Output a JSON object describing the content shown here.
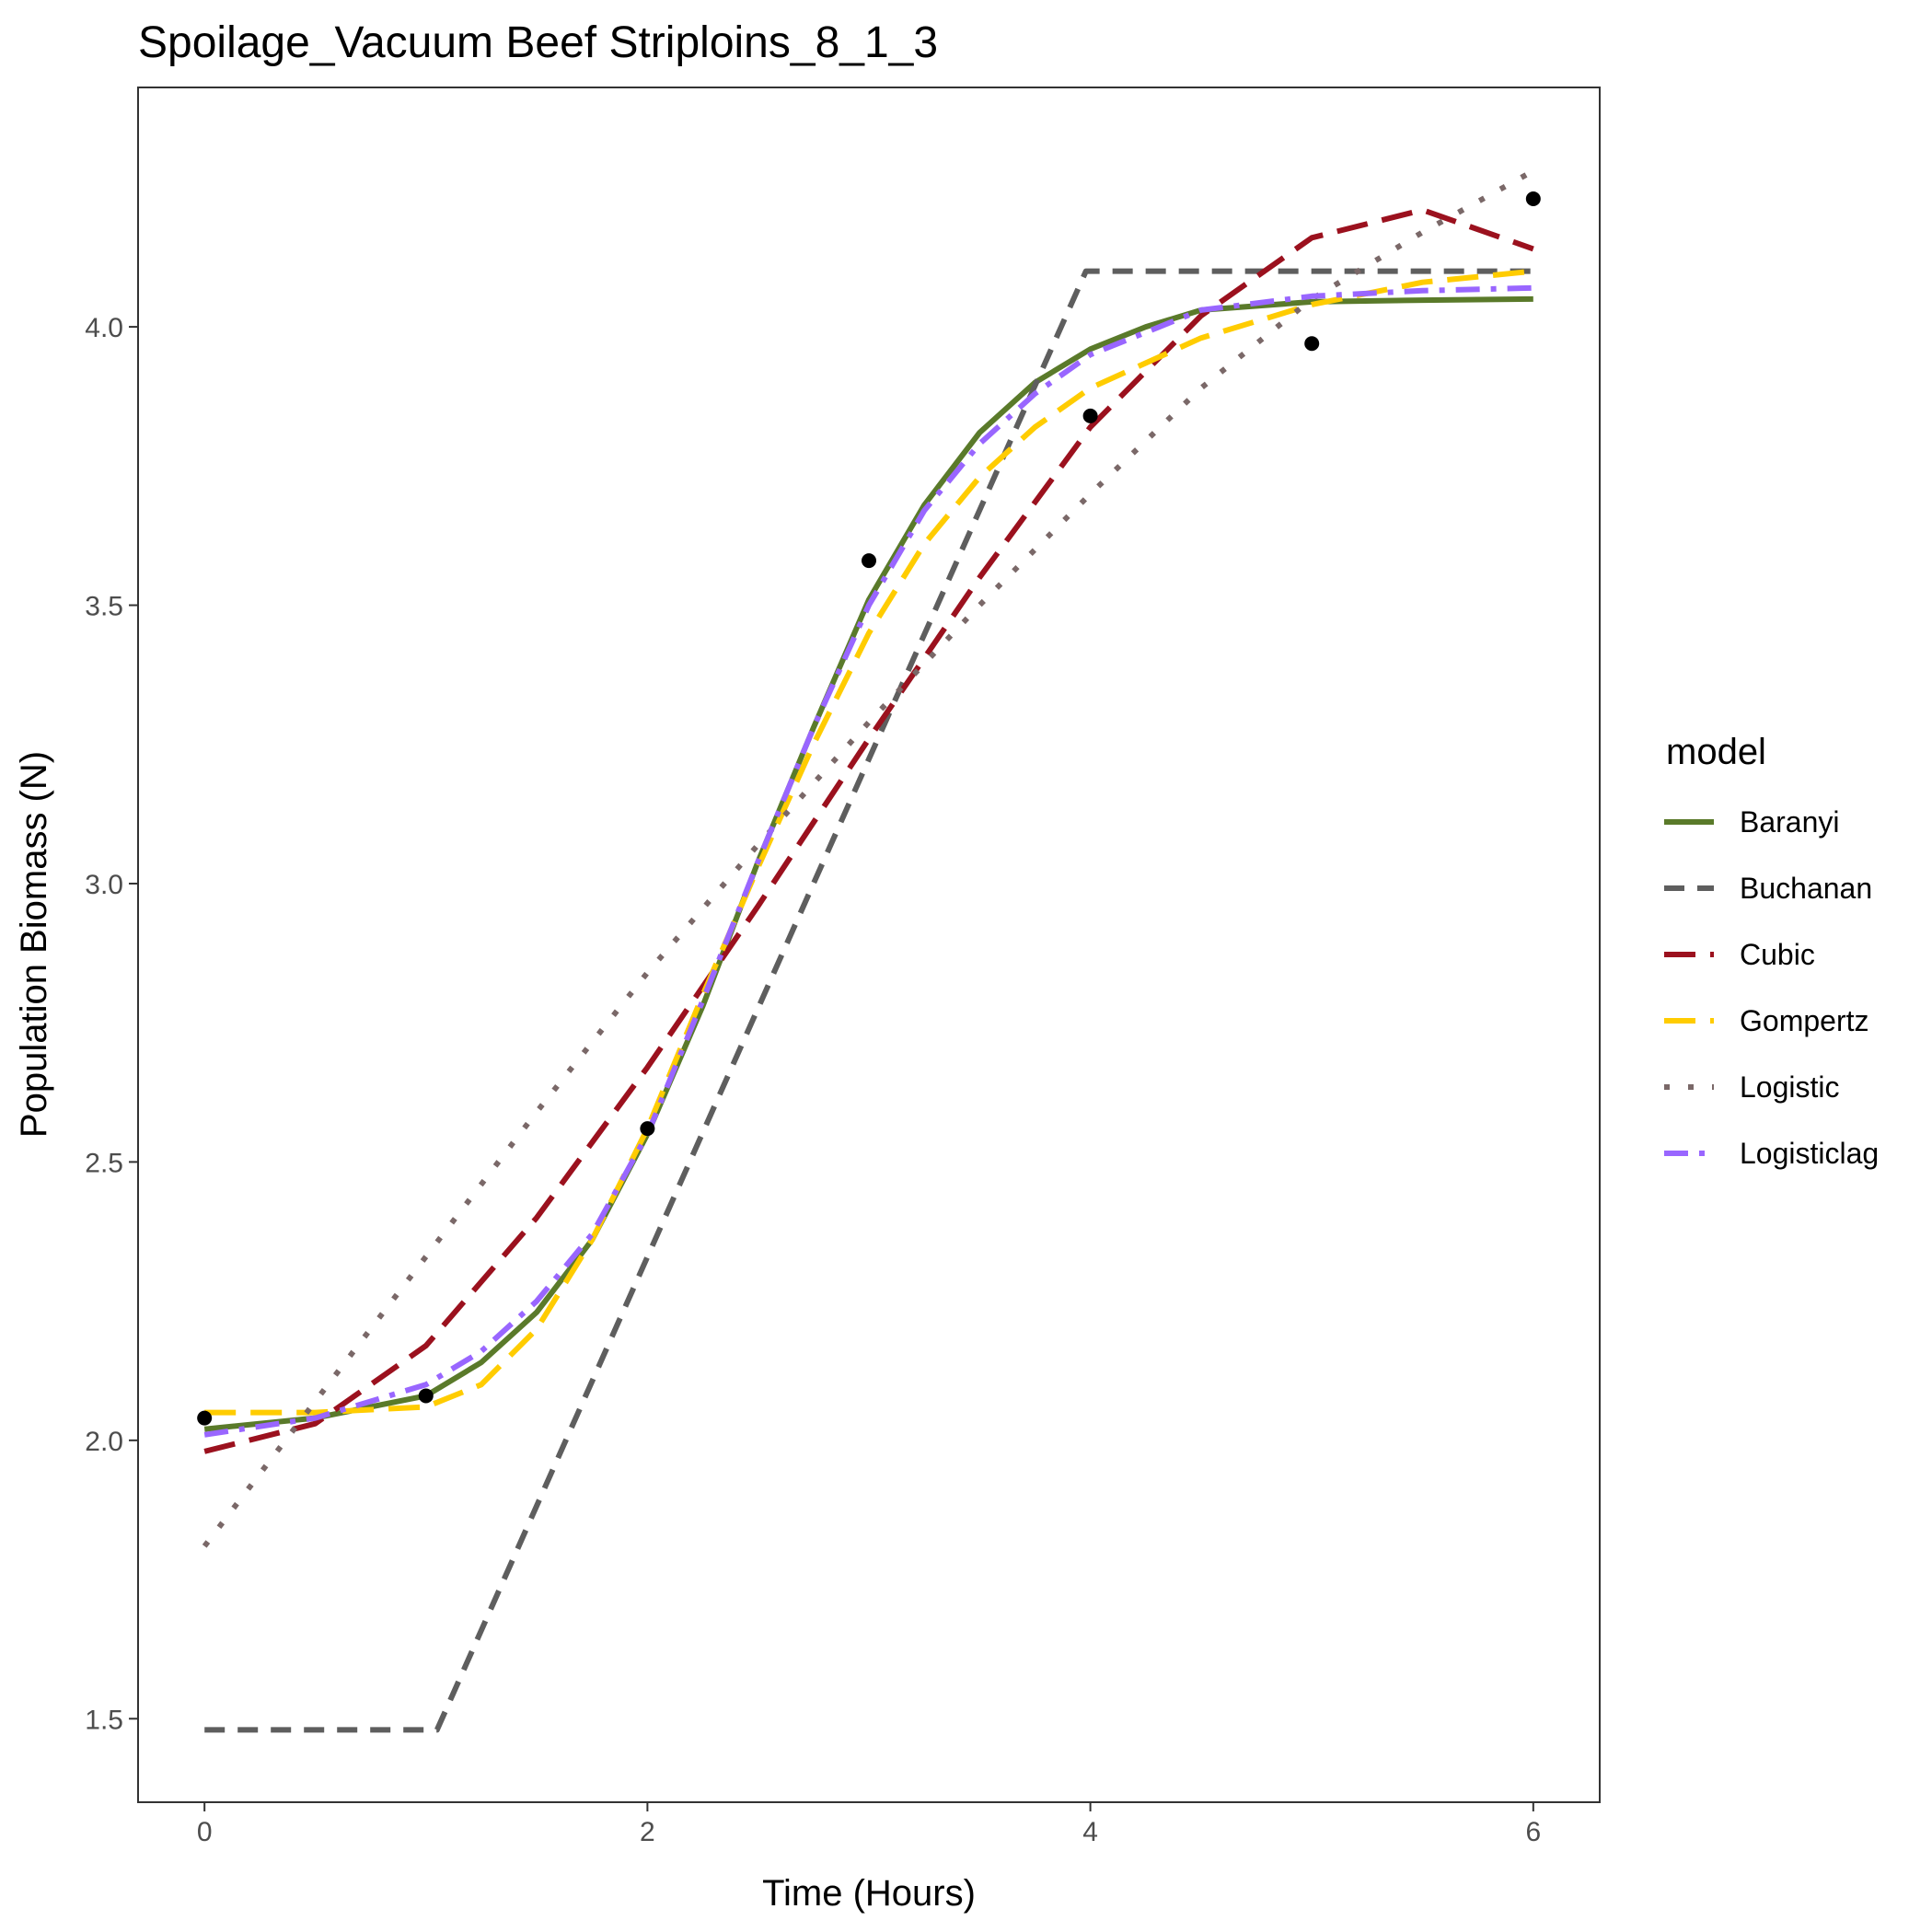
{
  "chart_data": {
    "type": "line",
    "title": "Spoilage_Vacuum Beef Striploins_8_1_3",
    "xlabel": "Time (Hours)",
    "ylabel": "Population Biomass (N)",
    "xlim": [
      -0.3,
      6.3
    ],
    "ylim": [
      1.35,
      4.43
    ],
    "x_ticks": [
      0,
      2,
      4,
      6
    ],
    "x_tick_labels": [
      "0",
      "2",
      "4",
      "6"
    ],
    "y_ticks": [
      1.5,
      2.0,
      2.5,
      3.0,
      3.5,
      4.0
    ],
    "y_tick_labels": [
      "1.5",
      "2.0",
      "2.5",
      "3.0",
      "3.5",
      "4.0"
    ],
    "grid": false,
    "legend": {
      "title": "model",
      "position": "right"
    },
    "observed": {
      "x": [
        0,
        1,
        2,
        3,
        4,
        5,
        6
      ],
      "y": [
        2.04,
        2.08,
        2.56,
        3.58,
        3.84,
        3.97,
        4.23
      ]
    },
    "series": [
      {
        "name": "Baranyi",
        "color": "#5a7a2a",
        "dash": "solid",
        "x": [
          0,
          0.5,
          1,
          1.25,
          1.5,
          1.75,
          2,
          2.25,
          2.5,
          2.75,
          3,
          3.25,
          3.5,
          3.75,
          4,
          4.25,
          4.5,
          5,
          5.5,
          6
        ],
        "y": [
          2.02,
          2.04,
          2.08,
          2.14,
          2.23,
          2.36,
          2.55,
          2.78,
          3.04,
          3.28,
          3.51,
          3.68,
          3.81,
          3.9,
          3.96,
          4.0,
          4.03,
          4.045,
          4.048,
          4.05
        ]
      },
      {
        "name": "Buchanan",
        "color": "#5e5e5e",
        "dash": "dashed",
        "x": [
          0,
          1.05,
          3.98,
          6
        ],
        "y": [
          1.48,
          1.48,
          4.1,
          4.1
        ]
      },
      {
        "name": "Cubic",
        "color": "#9b111e",
        "dash": "longdash",
        "x": [
          0,
          0.5,
          1,
          1.5,
          2,
          2.5,
          3,
          3.5,
          4,
          4.5,
          5,
          5.5,
          6
        ],
        "y": [
          1.98,
          2.03,
          2.17,
          2.4,
          2.67,
          2.96,
          3.26,
          3.55,
          3.82,
          4.02,
          4.16,
          4.21,
          4.14
        ]
      },
      {
        "name": "Gompertz",
        "color": "#ffcc00",
        "dash": "longdash",
        "x": [
          0,
          0.5,
          1,
          1.25,
          1.5,
          1.75,
          2,
          2.25,
          2.5,
          2.75,
          3,
          3.25,
          3.5,
          3.75,
          4,
          4.5,
          5,
          5.5,
          6
        ],
        "y": [
          2.05,
          2.05,
          2.06,
          2.1,
          2.2,
          2.36,
          2.56,
          2.8,
          3.03,
          3.25,
          3.45,
          3.61,
          3.73,
          3.82,
          3.89,
          3.98,
          4.04,
          4.08,
          4.1
        ]
      },
      {
        "name": "Logistic",
        "color": "#7a6868",
        "dash": "dotted",
        "x": [
          0,
          0.5,
          1,
          1.5,
          2,
          2.5,
          3,
          3.5,
          4,
          4.5,
          5,
          5.5,
          6
        ],
        "y": [
          1.81,
          2.07,
          2.33,
          2.59,
          2.84,
          3.07,
          3.29,
          3.5,
          3.7,
          3.89,
          4.05,
          4.17,
          4.28
        ]
      },
      {
        "name": "Logisticlag",
        "color": "#9966ff",
        "dash": "dotdash",
        "x": [
          0,
          0.5,
          1,
          1.25,
          1.5,
          1.75,
          2,
          2.25,
          2.5,
          2.75,
          3,
          3.25,
          3.5,
          3.75,
          4,
          4.5,
          5,
          5.5,
          6
        ],
        "y": [
          2.01,
          2.04,
          2.1,
          2.16,
          2.25,
          2.37,
          2.55,
          2.79,
          3.04,
          3.28,
          3.5,
          3.67,
          3.79,
          3.88,
          3.95,
          4.03,
          4.055,
          4.065,
          4.07
        ]
      }
    ]
  }
}
